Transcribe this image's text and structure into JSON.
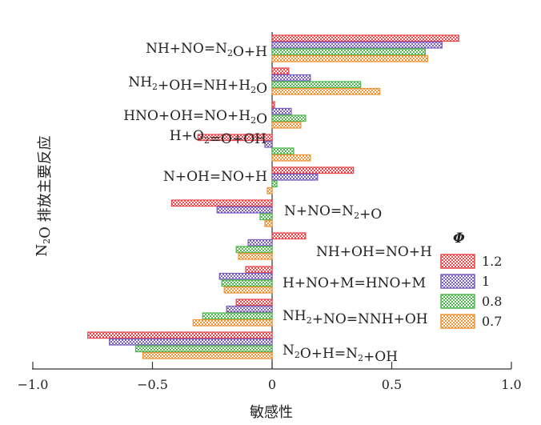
{
  "chart_data": {
    "type": "bar",
    "orientation": "horizontal",
    "xlabel": "敏感性",
    "ylabel": "N₂O 排放主要反应",
    "xlim": [
      -1.0,
      1.0
    ],
    "xticks": [
      "−1.0",
      "−0.5",
      "0",
      "0.5",
      "1.0"
    ],
    "xtick_values": [
      -1.0,
      -0.5,
      0,
      0.5,
      1.0
    ],
    "legend_title": "Φ",
    "legend_position": "right",
    "categories": [
      "NH+NO=N₂O+H",
      "NH₂+OH=NH+H₂O",
      "HNO+OH=NO+H₂O",
      "H+O₂=O+OH",
      "N+OH=NO+H",
      "N+NO=N₂+O",
      "NH+OH=NO+H",
      "H+NO+M=HNO+M",
      "NH₂+NO=NNH+OH",
      "N₂O+H=N₂+OH"
    ],
    "series": [
      {
        "name": "1.2",
        "color": "#e8474c",
        "values": [
          0.78,
          0.07,
          0.01,
          -0.31,
          0.34,
          -0.42,
          0.14,
          -0.11,
          -0.15,
          -0.77
        ]
      },
      {
        "name": "1",
        "color": "#7b5fbf",
        "values": [
          0.71,
          0.16,
          0.08,
          -0.03,
          0.19,
          -0.23,
          -0.1,
          -0.22,
          -0.19,
          -0.68
        ]
      },
      {
        "name": "0.8",
        "color": "#4fb84f",
        "values": [
          0.64,
          0.37,
          0.14,
          0.09,
          0.02,
          -0.05,
          -0.15,
          -0.21,
          -0.29,
          -0.57
        ]
      },
      {
        "name": "0.7",
        "color": "#f0943a",
        "values": [
          0.65,
          0.45,
          0.12,
          0.16,
          -0.02,
          -0.03,
          -0.14,
          -0.2,
          -0.33,
          -0.54
        ]
      }
    ]
  }
}
